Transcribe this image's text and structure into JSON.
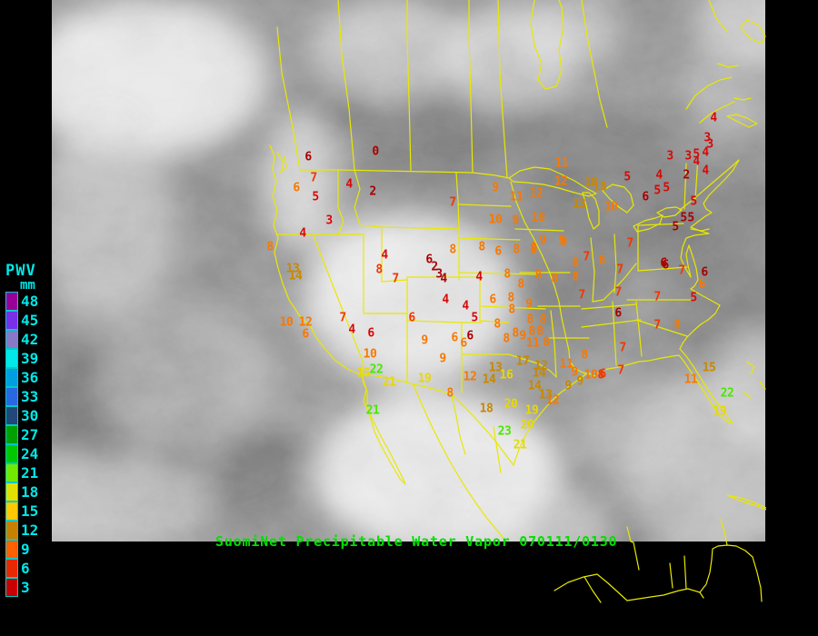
{
  "legend": {
    "title": "PWV",
    "unit": "mm",
    "text_color": "#00E8E8",
    "entries": [
      {
        "value": "48",
        "color": "#980098"
      },
      {
        "value": "45",
        "color": "#7830E8"
      },
      {
        "value": "42",
        "color": "#8878C8"
      },
      {
        "value": "39",
        "color": "#00E8E8"
      },
      {
        "value": "36",
        "color": "#00A0E0"
      },
      {
        "value": "33",
        "color": "#2868E0"
      },
      {
        "value": "30",
        "color": "#204878"
      },
      {
        "value": "27",
        "color": "#00A000"
      },
      {
        "value": "24",
        "color": "#00C800"
      },
      {
        "value": "21",
        "color": "#70E800"
      },
      {
        "value": "18",
        "color": "#E0E000"
      },
      {
        "value": "15",
        "color": "#FFC800"
      },
      {
        "value": "12",
        "color": "#C88000"
      },
      {
        "value": "9",
        "color": "#FF6000"
      },
      {
        "value": "6",
        "color": "#E82800"
      },
      {
        "value": "3",
        "color": "#C80000"
      }
    ]
  },
  "caption": {
    "text": "SuomiNet Precipitable Water Vapor 070111/0130",
    "color": "#00E000"
  },
  "map": {
    "outline_color": "#E8E800"
  },
  "palette": {
    "c0": "#A80000",
    "c1": "#D80808",
    "c2": "#F03800",
    "c3": "#F87800",
    "c4": "#C88800",
    "c5": "#E8D800",
    "c6": "#48E800"
  },
  "stations": [
    [
      413,
      167,
      "0",
      "c0"
    ],
    [
      339,
      173,
      "6",
      "c0"
    ],
    [
      345,
      196,
      "7",
      "c2"
    ],
    [
      326,
      207,
      "6",
      "c3"
    ],
    [
      384,
      203,
      "4",
      "c1"
    ],
    [
      410,
      211,
      "2",
      "c0"
    ],
    [
      347,
      217,
      "5",
      "c1"
    ],
    [
      362,
      243,
      "3",
      "c1"
    ],
    [
      333,
      257,
      "4",
      "c1"
    ],
    [
      297,
      272,
      "8",
      "c3"
    ],
    [
      322,
      296,
      "13",
      "c4"
    ],
    [
      325,
      304,
      "14",
      "c4"
    ],
    [
      423,
      281,
      "4",
      "c1"
    ],
    [
      417,
      297,
      "8",
      "c2"
    ],
    [
      435,
      307,
      "7",
      "c2"
    ],
    [
      472,
      286,
      "6",
      "c0"
    ],
    [
      478,
      294,
      "2",
      "c0"
    ],
    [
      483,
      302,
      "3",
      "c0"
    ],
    [
      488,
      307,
      "4",
      "c0"
    ],
    [
      377,
      350,
      "7",
      "c2"
    ],
    [
      387,
      363,
      "4",
      "c1"
    ],
    [
      408,
      367,
      "6",
      "c1"
    ],
    [
      315,
      355,
      "10",
      "c3"
    ],
    [
      336,
      355,
      "12",
      "c3"
    ],
    [
      336,
      368,
      "6",
      "c3"
    ],
    [
      407,
      390,
      "10",
      "c3"
    ],
    [
      400,
      411,
      "15",
      "c5"
    ],
    [
      414,
      407,
      "22",
      "c6"
    ],
    [
      428,
      421,
      "21",
      "c5"
    ],
    [
      410,
      452,
      "21",
      "c6"
    ],
    [
      467,
      417,
      "19",
      "c5"
    ],
    [
      453,
      350,
      "6",
      "c2"
    ],
    [
      467,
      375,
      "9",
      "c3"
    ],
    [
      498,
      223,
      "7",
      "c2"
    ],
    [
      498,
      275,
      "8",
      "c3"
    ],
    [
      530,
      272,
      "8",
      "c3"
    ],
    [
      548,
      277,
      "6",
      "c3"
    ],
    [
      568,
      275,
      "8",
      "c3"
    ],
    [
      587,
      275,
      "9",
      "c3"
    ],
    [
      527,
      305,
      "4",
      "c1"
    ],
    [
      558,
      302,
      "8",
      "c3"
    ],
    [
      592,
      303,
      "8",
      "c3"
    ],
    [
      573,
      313,
      "8",
      "c3"
    ],
    [
      490,
      330,
      "4",
      "c1"
    ],
    [
      512,
      337,
      "4",
      "c1"
    ],
    [
      542,
      330,
      "6",
      "c3"
    ],
    [
      562,
      328,
      "8",
      "c3"
    ],
    [
      563,
      341,
      "8",
      "c3"
    ],
    [
      582,
      335,
      "9",
      "c3"
    ],
    [
      522,
      350,
      "5",
      "c1"
    ],
    [
      547,
      357,
      "8",
      "c3"
    ],
    [
      583,
      352,
      "8",
      "c3"
    ],
    [
      597,
      352,
      "8",
      "c3"
    ],
    [
      500,
      372,
      "6",
      "c3"
    ],
    [
      517,
      370,
      "6",
      "c0"
    ],
    [
      510,
      378,
      "6",
      "c3"
    ],
    [
      557,
      373,
      "8",
      "c3"
    ],
    [
      567,
      367,
      "8",
      "c3"
    ],
    [
      575,
      370,
      "9",
      "c3"
    ],
    [
      585,
      365,
      "8",
      "c3"
    ],
    [
      594,
      365,
      "8",
      "c3"
    ],
    [
      586,
      378,
      "11",
      "c3"
    ],
    [
      601,
      377,
      "8",
      "c3"
    ],
    [
      545,
      207,
      "9",
      "c3"
    ],
    [
      568,
      217,
      "11",
      "c3"
    ],
    [
      590,
      213,
      "12",
      "c3"
    ],
    [
      618,
      180,
      "11",
      "c3"
    ],
    [
      617,
      200,
      "12",
      "c3"
    ],
    [
      650,
      201,
      "18",
      "c4"
    ],
    [
      660,
      206,
      "18",
      "c4"
    ],
    [
      637,
      225,
      "13",
      "c4"
    ],
    [
      672,
      228,
      "10",
      "c3"
    ],
    [
      545,
      242,
      "10",
      "c3"
    ],
    [
      567,
      243,
      "9",
      "c3"
    ],
    [
      592,
      240,
      "10",
      "c3"
    ],
    [
      597,
      265,
      "9",
      "c3"
    ],
    [
      618,
      265,
      "9",
      "c3"
    ],
    [
      587,
      273,
      "9",
      "c3"
    ],
    [
      620,
      267,
      "9",
      "c3"
    ],
    [
      693,
      268,
      "7",
      "c2"
    ],
    [
      645,
      283,
      "7",
      "c2"
    ],
    [
      662,
      287,
      "8",
      "c3"
    ],
    [
      633,
      290,
      "8",
      "c3"
    ],
    [
      633,
      305,
      "8",
      "c3"
    ],
    [
      610,
      307,
      "8",
      "c3"
    ],
    [
      682,
      297,
      "7",
      "c2"
    ],
    [
      732,
      292,
      "6",
      "c0"
    ],
    [
      750,
      298,
      "7",
      "c2"
    ],
    [
      640,
      325,
      "7",
      "c2"
    ],
    [
      680,
      322,
      "7",
      "c2"
    ],
    [
      723,
      327,
      "7",
      "c2"
    ],
    [
      763,
      328,
      "5",
      "c1"
    ],
    [
      785,
      130,
      "4",
      "c1"
    ],
    [
      778,
      152,
      "3",
      "c1"
    ],
    [
      781,
      159,
      "3",
      "c1"
    ],
    [
      737,
      172,
      "3",
      "c1"
    ],
    [
      757,
      172,
      "3",
      "c1"
    ],
    [
      766,
      170,
      "5",
      "c1"
    ],
    [
      776,
      168,
      "4",
      "c1"
    ],
    [
      766,
      178,
      "4",
      "c1"
    ],
    [
      755,
      193,
      "2",
      "c0"
    ],
    [
      776,
      188,
      "4",
      "c1"
    ],
    [
      690,
      195,
      "5",
      "c1"
    ],
    [
      725,
      193,
      "4",
      "c1"
    ],
    [
      723,
      210,
      "5",
      "c1"
    ],
    [
      733,
      207,
      "5",
      "c1"
    ],
    [
      710,
      217,
      "6",
      "c0"
    ],
    [
      763,
      222,
      "5",
      "c1"
    ],
    [
      743,
      250,
      "5",
      "c0"
    ],
    [
      752,
      240,
      "5",
      "c0"
    ],
    [
      760,
      240,
      "5",
      "c0"
    ],
    [
      730,
      290,
      "6",
      "c0"
    ],
    [
      775,
      300,
      "6",
      "c0"
    ],
    [
      772,
      313,
      "6",
      "c3"
    ],
    [
      680,
      345,
      "6",
      "c0"
    ],
    [
      723,
      358,
      "7",
      "c2"
    ],
    [
      745,
      358,
      "8",
      "c3"
    ],
    [
      685,
      383,
      "7",
      "c2"
    ],
    [
      663,
      412,
      "6",
      "c2"
    ],
    [
      683,
      408,
      "7",
      "c2"
    ],
    [
      780,
      405,
      "15",
      "c4"
    ],
    [
      760,
      418,
      "11",
      "c3"
    ],
    [
      800,
      433,
      "22",
      "c6"
    ],
    [
      792,
      453,
      "19",
      "c5"
    ],
    [
      487,
      395,
      "9",
      "c3"
    ],
    [
      517,
      415,
      "12",
      "c3"
    ],
    [
      545,
      405,
      "13",
      "c4"
    ],
    [
      538,
      418,
      "14",
      "c4"
    ],
    [
      557,
      413,
      "16",
      "c5"
    ],
    [
      575,
      398,
      "17",
      "c4"
    ],
    [
      595,
      403,
      "12",
      "c4"
    ],
    [
      593,
      411,
      "14",
      "c4"
    ],
    [
      588,
      425,
      "14",
      "c4"
    ],
    [
      623,
      401,
      "11",
      "c3"
    ],
    [
      632,
      410,
      "9",
      "c3"
    ],
    [
      643,
      391,
      "8",
      "c3"
    ],
    [
      625,
      425,
      "9",
      "c4"
    ],
    [
      638,
      420,
      "9",
      "c4"
    ],
    [
      650,
      413,
      "10",
      "c3"
    ],
    [
      661,
      413,
      "8",
      "c2"
    ],
    [
      495,
      433,
      "8",
      "c3"
    ],
    [
      600,
      435,
      "13",
      "c4"
    ],
    [
      608,
      441,
      "12",
      "c3"
    ],
    [
      535,
      450,
      "18",
      "c4"
    ],
    [
      562,
      445,
      "20",
      "c5"
    ],
    [
      585,
      452,
      "19",
      "c5"
    ],
    [
      555,
      475,
      "23",
      "c6"
    ],
    [
      580,
      468,
      "20",
      "c5"
    ],
    [
      572,
      490,
      "21",
      "c5"
    ]
  ]
}
